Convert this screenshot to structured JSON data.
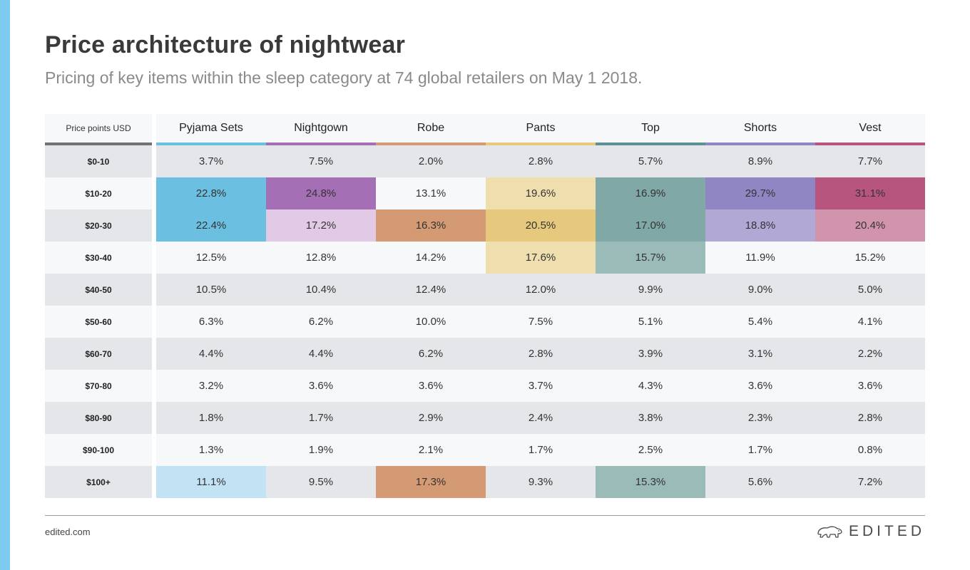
{
  "header": {
    "title": "Price architecture of nightwear",
    "subtitle": "Pricing of key items within the sleep category at 74 global retailers on May 1 2018."
  },
  "footer": {
    "site": "edited.com",
    "brand": "EDITED",
    "brand_icon": "polar-bear-icon"
  },
  "colors": {
    "side_bar": "#7ecaf0",
    "row_odd": "#e5e6ea",
    "row_even": "#f7f8fa"
  },
  "chart_data": {
    "type": "table",
    "row_header": "Price points USD",
    "columns": [
      {
        "name": "Pyjama Sets",
        "accent": "#6bbfe0"
      },
      {
        "name": "Nightgown",
        "accent": "#a56fb5"
      },
      {
        "name": "Robe",
        "accent": "#d49a73"
      },
      {
        "name": "Pants",
        "accent": "#e6c97d"
      },
      {
        "name": "Top",
        "accent": "#5e9292"
      },
      {
        "name": "Shorts",
        "accent": "#8f86c4"
      },
      {
        "name": "Vest",
        "accent": "#b8557e"
      }
    ],
    "rows": [
      {
        "label": "$0-10",
        "values": [
          "3.7%",
          "7.5%",
          "2.0%",
          "2.8%",
          "5.7%",
          "8.9%",
          "7.7%"
        ],
        "highlights": [
          null,
          null,
          null,
          null,
          null,
          null,
          null
        ]
      },
      {
        "label": "$10-20",
        "values": [
          "22.8%",
          "24.8%",
          "13.1%",
          "19.6%",
          "16.9%",
          "29.7%",
          "31.1%"
        ],
        "highlights": [
          "#6bbfe0",
          "#a56fb5",
          null,
          "#f0dfae",
          "#80a8a6",
          "#9186c4",
          "#b8557e"
        ]
      },
      {
        "label": "$20-30",
        "values": [
          "22.4%",
          "17.2%",
          "16.3%",
          "20.5%",
          "17.0%",
          "18.8%",
          "20.4%"
        ],
        "highlights": [
          "#6bbfe0",
          "#e2cae6",
          "#d49a73",
          "#e6c97d",
          "#80a8a6",
          "#b1a8d6",
          "#d293ad"
        ]
      },
      {
        "label": "$30-40",
        "values": [
          "12.5%",
          "12.8%",
          "14.2%",
          "17.6%",
          "15.7%",
          "11.9%",
          "15.2%"
        ],
        "highlights": [
          null,
          null,
          null,
          "#f0dfae",
          "#9bbbb9",
          null,
          null
        ]
      },
      {
        "label": "$40-50",
        "values": [
          "10.5%",
          "10.4%",
          "12.4%",
          "12.0%",
          "9.9%",
          "9.0%",
          "5.0%"
        ],
        "highlights": [
          null,
          null,
          null,
          null,
          null,
          null,
          null
        ]
      },
      {
        "label": "$50-60",
        "values": [
          "6.3%",
          "6.2%",
          "10.0%",
          "7.5%",
          "5.1%",
          "5.4%",
          "4.1%"
        ],
        "highlights": [
          null,
          null,
          null,
          null,
          null,
          null,
          null
        ]
      },
      {
        "label": "$60-70",
        "values": [
          "4.4%",
          "4.4%",
          "6.2%",
          "2.8%",
          "3.9%",
          "3.1%",
          "2.2%"
        ],
        "highlights": [
          null,
          null,
          null,
          null,
          null,
          null,
          null
        ]
      },
      {
        "label": "$70-80",
        "values": [
          "3.2%",
          "3.6%",
          "3.6%",
          "3.7%",
          "4.3%",
          "3.6%",
          "3.6%"
        ],
        "highlights": [
          null,
          null,
          null,
          null,
          null,
          null,
          null
        ]
      },
      {
        "label": "$80-90",
        "values": [
          "1.8%",
          "1.7%",
          "2.9%",
          "2.4%",
          "3.8%",
          "2.3%",
          "2.8%"
        ],
        "highlights": [
          null,
          null,
          null,
          null,
          null,
          null,
          null
        ]
      },
      {
        "label": "$90-100",
        "values": [
          "1.3%",
          "1.9%",
          "2.1%",
          "1.7%",
          "2.5%",
          "1.7%",
          "0.8%"
        ],
        "highlights": [
          null,
          null,
          null,
          null,
          null,
          null,
          null
        ]
      },
      {
        "label": "$100+",
        "values": [
          "11.1%",
          "9.5%",
          "17.3%",
          "9.3%",
          "15.3%",
          "5.6%",
          "7.2%"
        ],
        "highlights": [
          "#c2e3f3",
          null,
          "#d49a73",
          null,
          "#9bbbb9",
          null,
          null
        ]
      }
    ]
  }
}
